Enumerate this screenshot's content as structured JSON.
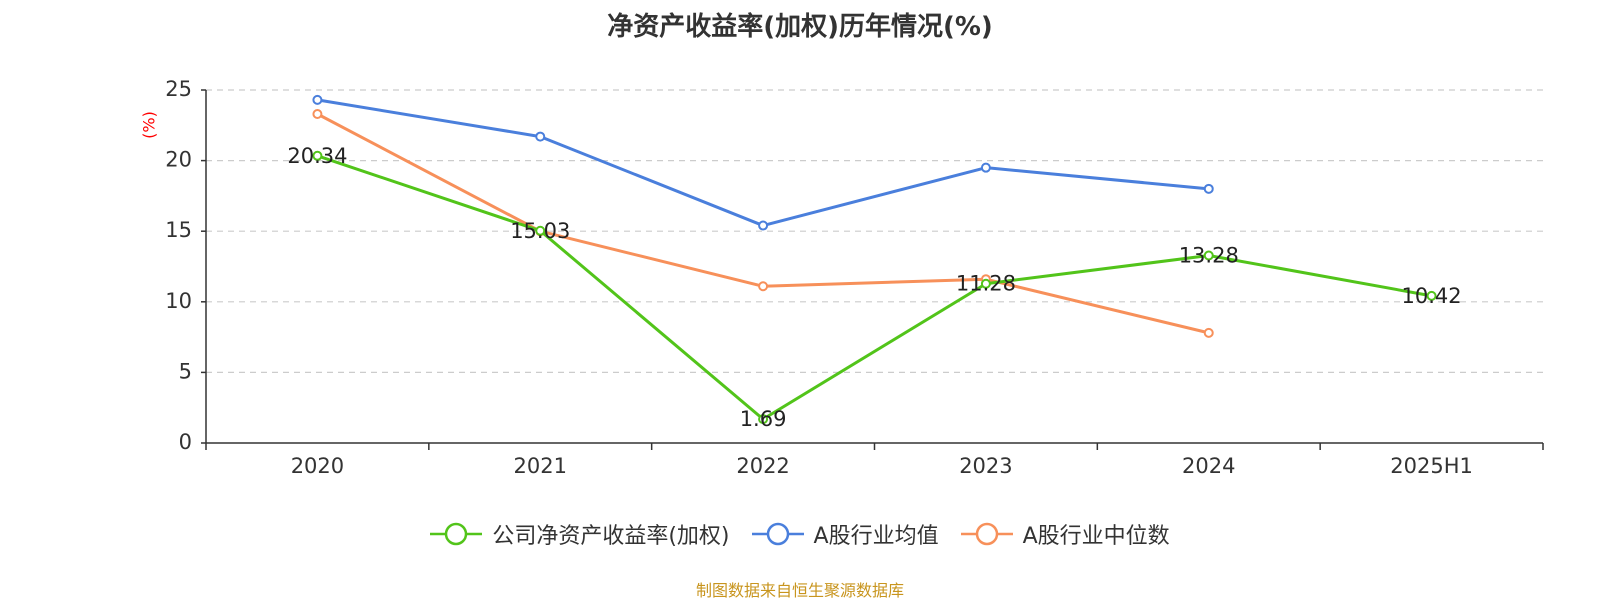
{
  "chart_data": {
    "type": "line",
    "title": "净资产收益率(加权)历年情况(%)",
    "ylabel": "(%)",
    "categories": [
      "2020",
      "2021",
      "2022",
      "2023",
      "2024",
      "2025H1"
    ],
    "y_ticks": [
      "0",
      "5",
      "10",
      "15",
      "20",
      "25"
    ],
    "ylim": [
      0,
      25
    ],
    "grid": true,
    "legend_position": "bottom",
    "series": [
      {
        "name": "公司净资产收益率(加权)",
        "color": "#52c41a",
        "values": [
          20.34,
          15.03,
          1.69,
          11.28,
          13.28,
          10.42
        ],
        "labels": [
          "20.34",
          "15.03",
          "1.69",
          "11.28",
          "13.28",
          "10.42"
        ]
      },
      {
        "name": "A股行业均值",
        "color": "#4a7fdc",
        "values": [
          24.3,
          21.7,
          15.4,
          19.5,
          18.0,
          null
        ]
      },
      {
        "name": "A股行业中位数",
        "color": "#f7905a",
        "values": [
          23.3,
          15.0,
          11.1,
          11.6,
          7.8,
          null
        ]
      }
    ]
  },
  "footer": {
    "source": "制图数据来自恒生聚源数据库"
  }
}
